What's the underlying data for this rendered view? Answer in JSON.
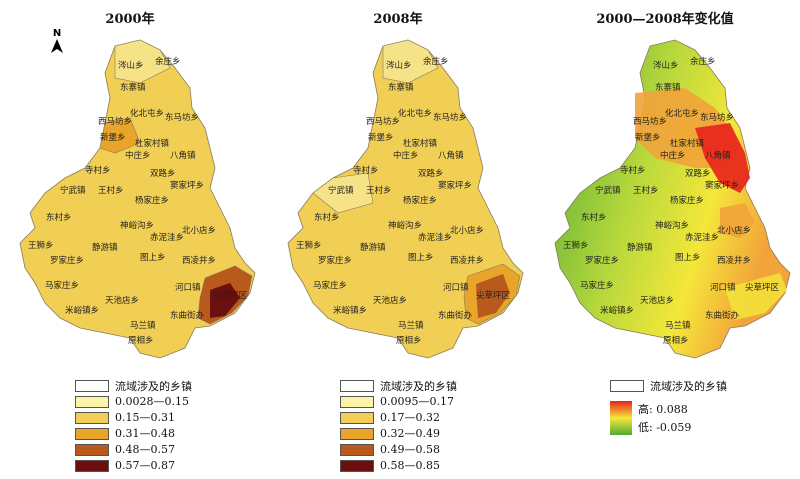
{
  "panels": [
    {
      "title": "2000年",
      "legend": [
        {
          "label": "流域涉及的乡镇",
          "color": "#ffffff"
        },
        {
          "label": "0.0028—0.15",
          "color": "#fbf3a6"
        },
        {
          "label": "0.15—0.31",
          "color": "#f1cf55"
        },
        {
          "label": "0.31—0.48",
          "color": "#e9a42a"
        },
        {
          "label": "0.48—0.57",
          "color": "#b75a1c"
        },
        {
          "label": "0.57—0.87",
          "color": "#6b0f0f"
        }
      ]
    },
    {
      "title": "2008年",
      "legend": [
        {
          "label": "流域涉及的乡镇",
          "color": "#ffffff"
        },
        {
          "label": "0.0095—0.17",
          "color": "#fbf3a6"
        },
        {
          "label": "0.17—0.32",
          "color": "#f1cf55"
        },
        {
          "label": "0.32—0.49",
          "color": "#e9a42a"
        },
        {
          "label": "0.49—0.58",
          "color": "#b75a1c"
        },
        {
          "label": "0.58—0.85",
          "color": "#6b0f0f"
        }
      ]
    },
    {
      "title": "2000—2008年变化值",
      "legend_box": "流域涉及的乡镇",
      "high_label": "高: 0.088",
      "low_label": "低: -0.059",
      "colors": {
        "high": "#e8211c",
        "mid": "#f4e73a",
        "low": "#4faa35"
      }
    }
  ],
  "north": "N",
  "towns": [
    "涔山乡",
    "余庄乡",
    "东寨镇",
    "迭合寺乡",
    "化北屯乡",
    "西马坊乡",
    "东马坊乡",
    "新堡乡",
    "林遮峪乡",
    "石家庄镇",
    "杜家村镇",
    "中庄乡",
    "段家寨乡",
    "八角镇",
    "宁化乡",
    "寺村乡",
    "双路乡",
    "窦家坪乡",
    "宁武镇",
    "王村乡",
    "梨元乡",
    "杨家庄乡",
    "阳方口镇",
    "东村乡",
    "前元乡",
    "宁化堡乡",
    "神峪沟乡",
    "赤泥洼乡",
    "北小店乡",
    "王狮乡",
    "五寨镇",
    "静游镇",
    "罗家庄乡",
    "图上乡",
    "窑子坡乡",
    "西凌井乡",
    "马家庄乡",
    "米峪镇乡",
    "天池店乡",
    "社交乡",
    "岔上乡",
    "河口镇",
    "尖草坪区",
    "东曲街办",
    "万柏林区",
    "马兰镇",
    "岔口乡",
    "原相乡",
    "邢家社乡"
  ]
}
